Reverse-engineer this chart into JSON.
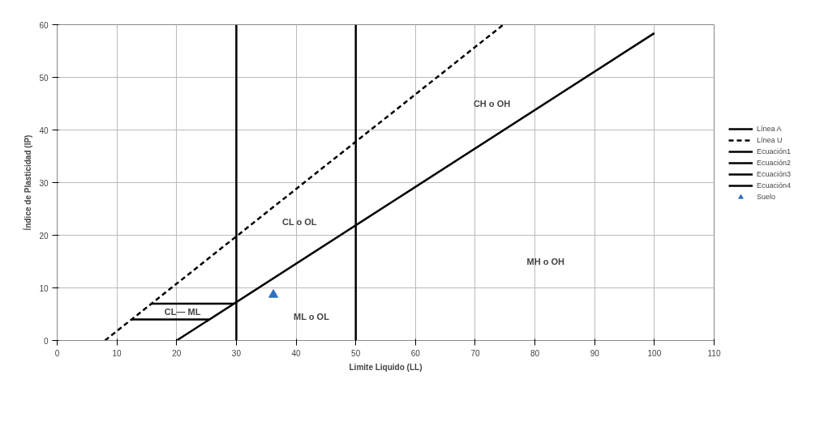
{
  "chart_data": {
    "type": "line",
    "xlabel": "Limite Liquido (LL)",
    "ylabel": "Índice de Plasticidad (IP)",
    "xlim": [
      0,
      110
    ],
    "ylim": [
      0,
      60
    ],
    "xticks": [
      0,
      10,
      20,
      30,
      40,
      50,
      60,
      70,
      80,
      90,
      100,
      110
    ],
    "yticks": [
      0,
      10,
      20,
      30,
      40,
      50,
      60
    ],
    "grid": true,
    "legend": "right",
    "marker": "none",
    "series": [
      {
        "name": "Línea A",
        "color": "#000000",
        "x": [
          20,
          100
        ],
        "values": [
          0,
          58.4
        ],
        "line_style": "solid"
      },
      {
        "name": "Línea U",
        "color": "#000000",
        "x": [
          8,
          74.7
        ],
        "values": [
          0,
          60
        ],
        "line_style": "dashed"
      },
      {
        "name": "Ecuación1",
        "color": "#000000",
        "x": [
          30,
          30
        ],
        "values": [
          0,
          60
        ],
        "line_style": "solid"
      },
      {
        "name": "Ecuación2",
        "color": "#000000",
        "x": [
          50,
          50
        ],
        "values": [
          0,
          60
        ],
        "line_style": "solid"
      },
      {
        "name": "Ecuación3",
        "color": "#000000",
        "x": [
          15.8,
          29.6
        ],
        "values": [
          7,
          7
        ],
        "line_style": "solid"
      },
      {
        "name": "Ecuación4",
        "color": "#000000",
        "x": [
          12.4,
          25.5
        ],
        "values": [
          4,
          4
        ],
        "line_style": "solid"
      },
      {
        "name": "Suelo",
        "type": "scatter",
        "color": "#2e6fc0",
        "x": [
          36.2
        ],
        "values": [
          8.7
        ],
        "marker": "triangle"
      }
    ],
    "annotations": [
      "CH  o OH",
      "CL  o  OL",
      "MH  o OH",
      "ML  o  OL",
      "CL— ML"
    ]
  }
}
